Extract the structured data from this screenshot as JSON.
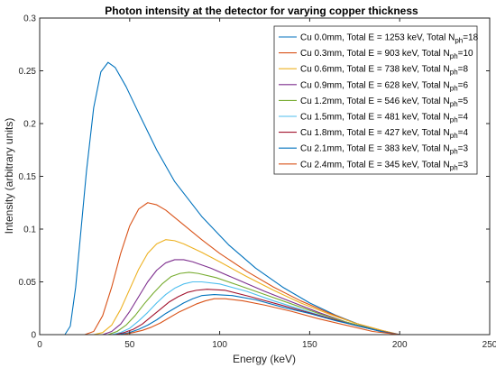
{
  "chart_data": {
    "type": "line",
    "title": "Photon intensity at the detector for varying copper thickness",
    "xlabel": "Energy (keV)",
    "ylabel": "Intensity (arbitrary units)",
    "xlim": [
      0,
      250
    ],
    "ylim": [
      0,
      0.3
    ],
    "xticks": [
      0,
      50,
      100,
      150,
      200,
      250
    ],
    "yticks": [
      0,
      0.05,
      0.1,
      0.15,
      0.2,
      0.25,
      0.3
    ],
    "xtick_labels": [
      "0",
      "50",
      "100",
      "150",
      "200",
      "250"
    ],
    "ytick_labels": [
      "0",
      "0.05",
      "0.1",
      "0.15",
      "0.2",
      "0.25",
      "0.3"
    ],
    "grid": false,
    "legend_position": "top-right",
    "series": [
      {
        "name": "Cu 0.0mm, Total E = 1253 keV, Total N",
        "sub": "ph",
        "suffix": "=18",
        "color": "#0072bd",
        "x": [
          14,
          17,
          20,
          23,
          26,
          30,
          34,
          38,
          42,
          48,
          55,
          65,
          75,
          90,
          105,
          120,
          135,
          150,
          165,
          180,
          192,
          200
        ],
        "y": [
          0,
          0.008,
          0.045,
          0.1,
          0.155,
          0.215,
          0.249,
          0.258,
          0.253,
          0.235,
          0.21,
          0.175,
          0.145,
          0.112,
          0.085,
          0.063,
          0.045,
          0.03,
          0.018,
          0.008,
          0.003,
          0
        ]
      },
      {
        "name": "Cu 0.3mm, Total E = 903 keV, Total N",
        "sub": "ph",
        "suffix": "=10",
        "color": "#d95319",
        "x": [
          25,
          30,
          35,
          40,
          45,
          50,
          55,
          60,
          65,
          70,
          80,
          90,
          100,
          115,
          130,
          145,
          160,
          175,
          190,
          200
        ],
        "y": [
          0,
          0.003,
          0.018,
          0.045,
          0.077,
          0.103,
          0.119,
          0.125,
          0.123,
          0.118,
          0.104,
          0.09,
          0.077,
          0.06,
          0.045,
          0.032,
          0.021,
          0.011,
          0.004,
          0
        ]
      },
      {
        "name": "Cu 0.6mm, Total E = 738 keV, Total N",
        "sub": "ph",
        "suffix": "=8",
        "color": "#edb120",
        "x": [
          30,
          35,
          40,
          45,
          50,
          55,
          60,
          65,
          70,
          75,
          80,
          90,
          100,
          115,
          130,
          145,
          160,
          175,
          190,
          200
        ],
        "y": [
          0,
          0.002,
          0.009,
          0.024,
          0.043,
          0.062,
          0.077,
          0.086,
          0.09,
          0.089,
          0.086,
          0.078,
          0.069,
          0.055,
          0.042,
          0.03,
          0.02,
          0.011,
          0.004,
          0
        ]
      },
      {
        "name": "Cu 0.9mm, Total E = 628 keV, Total N",
        "sub": "ph",
        "suffix": "=6",
        "color": "#7e2f8e",
        "x": [
          35,
          40,
          45,
          50,
          55,
          60,
          65,
          70,
          75,
          80,
          85,
          95,
          110,
          125,
          140,
          155,
          170,
          185,
          200
        ],
        "y": [
          0,
          0.003,
          0.01,
          0.022,
          0.036,
          0.05,
          0.061,
          0.068,
          0.071,
          0.071,
          0.069,
          0.063,
          0.052,
          0.041,
          0.031,
          0.021,
          0.012,
          0.005,
          0
        ]
      },
      {
        "name": "Cu 1.2mm, Total E = 546 keV, Total N",
        "sub": "ph",
        "suffix": "=5",
        "color": "#77ac30",
        "x": [
          38,
          43,
          48,
          53,
          58,
          63,
          68,
          73,
          78,
          83,
          88,
          98,
          110,
          125,
          140,
          155,
          170,
          185,
          200
        ],
        "y": [
          0,
          0.003,
          0.009,
          0.018,
          0.029,
          0.039,
          0.048,
          0.055,
          0.058,
          0.059,
          0.058,
          0.054,
          0.047,
          0.038,
          0.029,
          0.02,
          0.012,
          0.005,
          0
        ]
      },
      {
        "name": "Cu 1.5mm, Total E = 481 keV, Total N",
        "sub": "ph",
        "suffix": "=4",
        "color": "#4dbeee",
        "x": [
          40,
          45,
          50,
          55,
          60,
          65,
          70,
          75,
          80,
          85,
          90,
          100,
          115,
          130,
          145,
          160,
          175,
          190,
          200
        ],
        "y": [
          0,
          0.002,
          0.006,
          0.013,
          0.021,
          0.03,
          0.038,
          0.044,
          0.048,
          0.05,
          0.05,
          0.048,
          0.041,
          0.032,
          0.024,
          0.016,
          0.009,
          0.003,
          0
        ]
      },
      {
        "name": "Cu 1.8mm, Total E = 427 keV, Total N",
        "sub": "ph",
        "suffix": "=4",
        "color": "#a2142f",
        "x": [
          42,
          47,
          52,
          57,
          62,
          67,
          72,
          77,
          82,
          87,
          93,
          103,
          117,
          132,
          147,
          162,
          177,
          190,
          200
        ],
        "y": [
          0,
          0.002,
          0.005,
          0.01,
          0.017,
          0.024,
          0.031,
          0.036,
          0.04,
          0.042,
          0.043,
          0.042,
          0.036,
          0.029,
          0.022,
          0.015,
          0.008,
          0.003,
          0
        ]
      },
      {
        "name": "Cu 2.1mm, Total E = 383 keV, Total N",
        "sub": "ph",
        "suffix": "=3",
        "color": "#0072bd",
        "x": [
          44,
          50,
          55,
          60,
          65,
          70,
          75,
          80,
          85,
          90,
          97,
          107,
          120,
          135,
          150,
          165,
          180,
          192,
          200
        ],
        "y": [
          0,
          0.002,
          0.005,
          0.009,
          0.014,
          0.02,
          0.025,
          0.03,
          0.034,
          0.037,
          0.038,
          0.037,
          0.033,
          0.026,
          0.02,
          0.013,
          0.007,
          0.002,
          0
        ]
      },
      {
        "name": "Cu 2.4mm, Total E = 345 keV, Total N",
        "sub": "ph",
        "suffix": "=3",
        "color": "#d95319",
        "x": [
          46,
          52,
          57,
          62,
          67,
          72,
          77,
          82,
          87,
          92,
          97,
          103,
          113,
          125,
          140,
          155,
          170,
          185,
          200
        ],
        "y": [
          0,
          0.002,
          0.004,
          0.007,
          0.011,
          0.016,
          0.021,
          0.025,
          0.029,
          0.032,
          0.034,
          0.034,
          0.032,
          0.028,
          0.022,
          0.015,
          0.009,
          0.003,
          0
        ]
      }
    ]
  }
}
